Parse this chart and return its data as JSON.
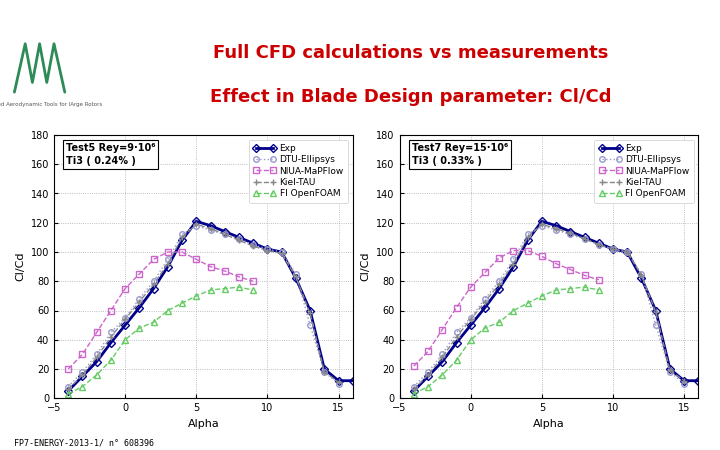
{
  "title_line1": "Full CFD calculations vs measurements",
  "title_line2": "Effect in Blade Design parameter: Cl/Cd",
  "title_color": "#cc0000",
  "teal_bar_color": "#2e8b8b",
  "footer_text": "FP7-ENERGY-2013-1/ n° 608396",
  "plot1_label_line1": "Test5 Rey=9·10⁶",
  "plot1_label_line2": "Ti3 ( 0.24% )",
  "plot2_label_line1": "Test7 Rey=15·10⁶",
  "plot2_label_line2": "Ti3 ( 0.33% )",
  "alpha": [
    -4,
    -3,
    -2,
    -1,
    0,
    1,
    2,
    3,
    4,
    5,
    6,
    7,
    8,
    9,
    10,
    11,
    12,
    13,
    14,
    15,
    16
  ],
  "exp1": [
    5,
    15,
    25,
    38,
    50,
    62,
    75,
    90,
    108,
    121,
    118,
    114,
    110,
    106,
    102,
    100,
    82,
    60,
    20,
    12,
    12
  ],
  "dtu1": [
    8,
    18,
    30,
    45,
    55,
    68,
    80,
    95,
    112,
    118,
    115,
    112,
    109,
    105,
    102,
    100,
    85,
    50,
    18,
    10,
    null
  ],
  "niua1": [
    20,
    30,
    45,
    60,
    75,
    85,
    95,
    100,
    100,
    95,
    90,
    87,
    83,
    80,
    null,
    null,
    null,
    null,
    null,
    null,
    null
  ],
  "kiel1": [
    6,
    16,
    28,
    42,
    54,
    66,
    78,
    92,
    110,
    119,
    116,
    112,
    108,
    104,
    101,
    99,
    83,
    58,
    18,
    11,
    null
  ],
  "foam1": [
    3,
    8,
    16,
    26,
    40,
    48,
    52,
    60,
    65,
    70,
    74,
    75,
    76,
    74,
    null,
    null,
    null,
    null,
    null,
    null,
    null
  ],
  "exp2": [
    5,
    15,
    25,
    38,
    50,
    62,
    75,
    90,
    108,
    121,
    118,
    114,
    110,
    106,
    102,
    100,
    82,
    60,
    20,
    12,
    12
  ],
  "dtu2": [
    8,
    18,
    30,
    45,
    55,
    68,
    80,
    95,
    112,
    118,
    115,
    112,
    109,
    105,
    102,
    100,
    85,
    50,
    18,
    10,
    null
  ],
  "niua2": [
    22,
    32,
    47,
    62,
    76,
    86,
    96,
    101,
    101,
    97,
    92,
    88,
    84,
    81,
    null,
    null,
    null,
    null,
    null,
    null,
    null
  ],
  "kiel2": [
    6,
    16,
    28,
    42,
    54,
    66,
    78,
    92,
    110,
    119,
    116,
    113,
    109,
    105,
    102,
    100,
    84,
    59,
    19,
    12,
    null
  ],
  "foam2": [
    3,
    8,
    16,
    26,
    40,
    48,
    52,
    60,
    65,
    70,
    74,
    75,
    76,
    74,
    null,
    null,
    null,
    null,
    null,
    null,
    null
  ],
  "ylim": [
    0,
    180
  ],
  "xlim": [
    -5,
    16
  ],
  "xticks": [
    -5,
    0,
    5,
    10,
    15
  ],
  "yticks": [
    0,
    20,
    40,
    60,
    80,
    100,
    120,
    140,
    160,
    180
  ],
  "color_exp": "#00008B",
  "color_dtu": "#9999cc",
  "color_niua": "#cc66cc",
  "color_kiel": "#888888",
  "color_foam": "#66cc66",
  "legend_entries": [
    "Exp",
    "DTU-Ellipsys",
    "NIUA-MaPFlow",
    "Kiel-TAU",
    "FI OpenFOAM"
  ]
}
